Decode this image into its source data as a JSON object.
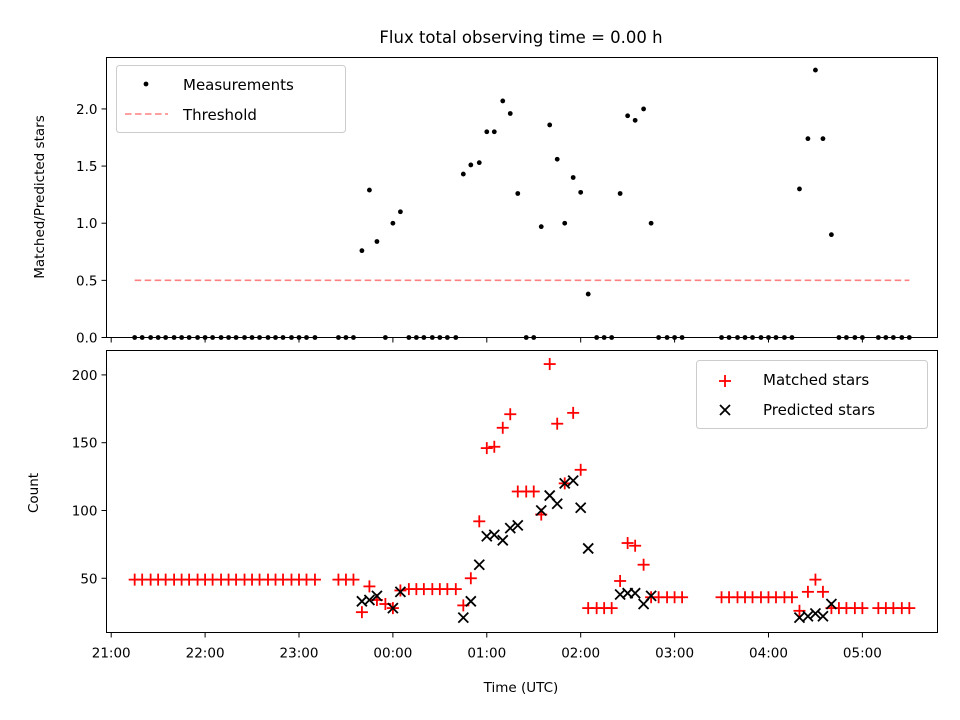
{
  "chart_data": [
    {
      "type": "scatter",
      "title": "Flux total observing time = 0.00 h",
      "xlabel": "",
      "ylabel": "Matched/Predicted stars",
      "ylim": [
        0,
        2.45
      ],
      "yticks": [
        0.0,
        0.5,
        1.0,
        1.5,
        2.0
      ],
      "ytick_labels": [
        "0.0",
        "0.5",
        "1.0",
        "1.5",
        "2.0"
      ],
      "legend_position": "top-left",
      "legend": [
        "Measurements",
        "Threshold"
      ],
      "threshold": {
        "name": "Threshold",
        "value": 0.5,
        "x_range": [
          21.25,
          29.5
        ],
        "color": "#ff8080"
      },
      "series": [
        {
          "name": "Measurements",
          "color": "#000000",
          "marker": "dot",
          "points": [
            [
              21.25,
              0
            ],
            [
              21.33,
              0
            ],
            [
              21.42,
              0
            ],
            [
              21.5,
              0
            ],
            [
              21.58,
              0
            ],
            [
              21.67,
              0
            ],
            [
              21.75,
              0
            ],
            [
              21.83,
              0
            ],
            [
              21.92,
              0
            ],
            [
              22.0,
              0
            ],
            [
              22.08,
              0
            ],
            [
              22.17,
              0
            ],
            [
              22.25,
              0
            ],
            [
              22.33,
              0
            ],
            [
              22.42,
              0
            ],
            [
              22.5,
              0
            ],
            [
              22.58,
              0
            ],
            [
              22.67,
              0
            ],
            [
              22.75,
              0
            ],
            [
              22.83,
              0
            ],
            [
              22.92,
              0
            ],
            [
              23.0,
              0
            ],
            [
              23.08,
              0
            ],
            [
              23.17,
              0
            ],
            [
              23.42,
              0
            ],
            [
              23.5,
              0
            ],
            [
              23.58,
              0
            ],
            [
              23.67,
              0.76
            ],
            [
              23.75,
              1.29
            ],
            [
              23.83,
              0.84
            ],
            [
              23.92,
              0
            ],
            [
              24.0,
              1.0
            ],
            [
              24.08,
              1.1
            ],
            [
              24.17,
              0
            ],
            [
              24.25,
              0
            ],
            [
              24.33,
              0
            ],
            [
              24.42,
              0
            ],
            [
              24.5,
              0
            ],
            [
              24.58,
              0
            ],
            [
              24.67,
              0
            ],
            [
              24.75,
              1.43
            ],
            [
              24.83,
              1.51
            ],
            [
              24.92,
              1.53
            ],
            [
              25.0,
              1.8
            ],
            [
              25.08,
              1.8
            ],
            [
              25.17,
              2.07
            ],
            [
              25.25,
              1.96
            ],
            [
              25.33,
              1.26
            ],
            [
              25.42,
              0
            ],
            [
              25.5,
              0
            ],
            [
              25.58,
              0.97
            ],
            [
              25.67,
              1.86
            ],
            [
              25.75,
              1.56
            ],
            [
              25.83,
              1.0
            ],
            [
              25.92,
              1.4
            ],
            [
              26.0,
              1.27
            ],
            [
              26.08,
              0.38
            ],
            [
              26.17,
              0
            ],
            [
              26.25,
              0
            ],
            [
              26.33,
              0
            ],
            [
              26.42,
              1.26
            ],
            [
              26.5,
              1.94
            ],
            [
              26.58,
              1.9
            ],
            [
              26.67,
              2.0
            ],
            [
              26.75,
              1.0
            ],
            [
              26.83,
              0
            ],
            [
              26.92,
              0
            ],
            [
              27.0,
              0
            ],
            [
              27.08,
              0
            ],
            [
              27.5,
              0
            ],
            [
              27.58,
              0
            ],
            [
              27.67,
              0
            ],
            [
              27.75,
              0
            ],
            [
              27.83,
              0
            ],
            [
              27.92,
              0
            ],
            [
              28.0,
              0
            ],
            [
              28.08,
              0
            ],
            [
              28.17,
              0
            ],
            [
              28.25,
              0
            ],
            [
              28.33,
              1.3
            ],
            [
              28.42,
              1.74
            ],
            [
              28.5,
              2.34
            ],
            [
              28.58,
              1.74
            ],
            [
              28.67,
              0.9
            ],
            [
              28.75,
              0
            ],
            [
              28.83,
              0
            ],
            [
              28.92,
              0
            ],
            [
              29.0,
              0
            ],
            [
              29.17,
              0
            ],
            [
              29.25,
              0
            ],
            [
              29.33,
              0
            ],
            [
              29.42,
              0
            ],
            [
              29.5,
              0
            ]
          ]
        }
      ]
    },
    {
      "type": "scatter",
      "title": "",
      "xlabel": "Time (UTC)",
      "ylabel": "Count",
      "xlim": [
        20.95,
        29.8
      ],
      "ylim": [
        10,
        218
      ],
      "xticks": [
        21,
        22,
        23,
        24,
        25,
        26,
        27,
        28,
        29
      ],
      "xtick_labels": [
        "21:00",
        "22:00",
        "23:00",
        "00:00",
        "01:00",
        "02:00",
        "03:00",
        "04:00",
        "05:00"
      ],
      "yticks": [
        50,
        100,
        150,
        200
      ],
      "ytick_labels": [
        "50",
        "100",
        "150",
        "200"
      ],
      "legend_position": "top-right",
      "legend": [
        "Matched stars",
        "Predicted stars"
      ],
      "series": [
        {
          "name": "Matched stars",
          "color": "#ff0000",
          "marker": "plus",
          "points": [
            [
              21.25,
              49
            ],
            [
              21.33,
              49
            ],
            [
              21.42,
              49
            ],
            [
              21.5,
              49
            ],
            [
              21.58,
              49
            ],
            [
              21.67,
              49
            ],
            [
              21.75,
              49
            ],
            [
              21.83,
              49
            ],
            [
              21.92,
              49
            ],
            [
              22.0,
              49
            ],
            [
              22.08,
              49
            ],
            [
              22.17,
              49
            ],
            [
              22.25,
              49
            ],
            [
              22.33,
              49
            ],
            [
              22.42,
              49
            ],
            [
              22.5,
              49
            ],
            [
              22.58,
              49
            ],
            [
              22.67,
              49
            ],
            [
              22.75,
              49
            ],
            [
              22.83,
              49
            ],
            [
              22.92,
              49
            ],
            [
              23.0,
              49
            ],
            [
              23.08,
              49
            ],
            [
              23.17,
              49
            ],
            [
              23.42,
              49
            ],
            [
              23.5,
              49
            ],
            [
              23.58,
              49
            ],
            [
              23.67,
              25
            ],
            [
              23.75,
              44
            ],
            [
              23.83,
              34
            ],
            [
              23.92,
              31
            ],
            [
              24.0,
              28
            ],
            [
              24.08,
              41
            ],
            [
              24.17,
              42
            ],
            [
              24.25,
              42
            ],
            [
              24.33,
              42
            ],
            [
              24.42,
              42
            ],
            [
              24.5,
              42
            ],
            [
              24.58,
              42
            ],
            [
              24.67,
              42
            ],
            [
              24.75,
              30
            ],
            [
              24.83,
              50
            ],
            [
              24.92,
              92
            ],
            [
              25.0,
              146
            ],
            [
              25.08,
              147
            ],
            [
              25.17,
              161
            ],
            [
              25.25,
              171
            ],
            [
              25.33,
              114
            ],
            [
              25.42,
              114
            ],
            [
              25.5,
              114
            ],
            [
              25.58,
              97
            ],
            [
              25.67,
              208
            ],
            [
              25.75,
              164
            ],
            [
              25.83,
              120
            ],
            [
              25.92,
              172
            ],
            [
              26.0,
              130
            ],
            [
              26.08,
              28
            ],
            [
              26.17,
              28
            ],
            [
              26.25,
              28
            ],
            [
              26.33,
              28
            ],
            [
              26.42,
              48
            ],
            [
              26.5,
              76
            ],
            [
              26.58,
              74
            ],
            [
              26.67,
              60
            ],
            [
              26.75,
              36
            ],
            [
              26.83,
              36
            ],
            [
              26.92,
              36
            ],
            [
              27.0,
              36
            ],
            [
              27.08,
              36
            ],
            [
              27.5,
              36
            ],
            [
              27.58,
              36
            ],
            [
              27.67,
              36
            ],
            [
              27.75,
              36
            ],
            [
              27.83,
              36
            ],
            [
              27.92,
              36
            ],
            [
              28.0,
              36
            ],
            [
              28.08,
              36
            ],
            [
              28.17,
              36
            ],
            [
              28.25,
              36
            ],
            [
              28.33,
              26
            ],
            [
              28.42,
              40
            ],
            [
              28.5,
              49
            ],
            [
              28.58,
              40
            ],
            [
              28.67,
              28
            ],
            [
              28.75,
              28
            ],
            [
              28.83,
              28
            ],
            [
              28.92,
              28
            ],
            [
              29.0,
              28
            ],
            [
              29.17,
              28
            ],
            [
              29.25,
              28
            ],
            [
              29.33,
              28
            ],
            [
              29.42,
              28
            ],
            [
              29.5,
              28
            ]
          ]
        },
        {
          "name": "Predicted stars",
          "color": "#000000",
          "marker": "cross",
          "points": [
            [
              23.67,
              33
            ],
            [
              23.75,
              34
            ],
            [
              23.83,
              37
            ],
            [
              24.0,
              28
            ],
            [
              24.08,
              40
            ],
            [
              24.75,
              21
            ],
            [
              24.83,
              33
            ],
            [
              24.92,
              60
            ],
            [
              25.0,
              81
            ],
            [
              25.08,
              82
            ],
            [
              25.17,
              78
            ],
            [
              25.25,
              87
            ],
            [
              25.33,
              89
            ],
            [
              25.58,
              100
            ],
            [
              25.67,
              111
            ],
            [
              25.75,
              105
            ],
            [
              25.83,
              120
            ],
            [
              25.92,
              122
            ],
            [
              26.0,
              102
            ],
            [
              26.08,
              72
            ],
            [
              26.42,
              38
            ],
            [
              26.5,
              39
            ],
            [
              26.58,
              39
            ],
            [
              26.67,
              31
            ],
            [
              26.75,
              37
            ],
            [
              28.33,
              21
            ],
            [
              28.42,
              22
            ],
            [
              28.5,
              24
            ],
            [
              28.58,
              22
            ],
            [
              28.67,
              31
            ]
          ]
        }
      ]
    }
  ]
}
